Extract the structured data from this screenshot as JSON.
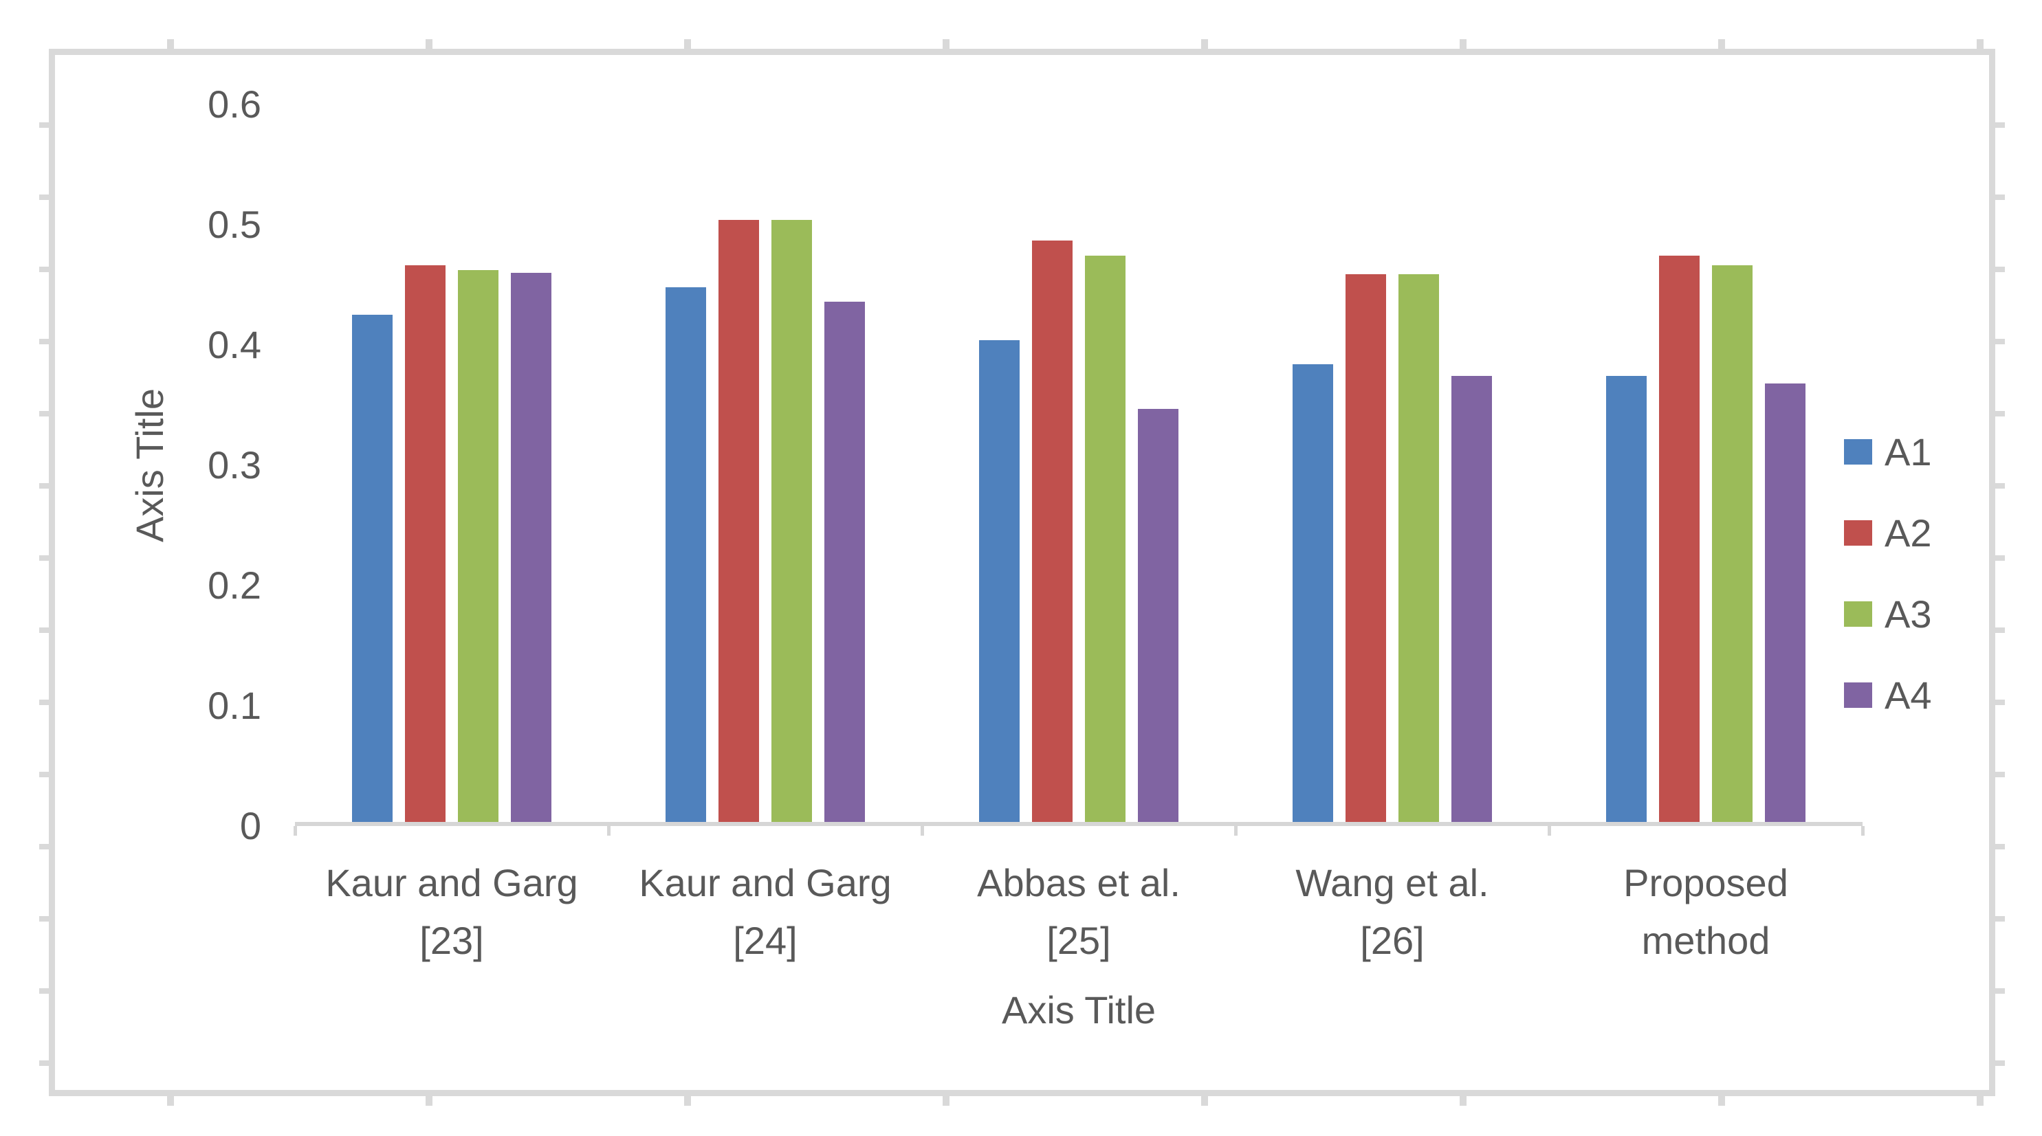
{
  "chart_data": {
    "type": "bar",
    "title": "",
    "xlabel": "Axis Title",
    "ylabel": "Axis Title",
    "categories": [
      "Kaur and Garg [23]",
      "Kaur and Garg [24]",
      "Abbas et al. [25]",
      "Wang et al. [26]",
      "Proposed method"
    ],
    "category_lines": [
      [
        "Kaur and Garg",
        "[23]"
      ],
      [
        "Kaur and Garg",
        "[24]"
      ],
      [
        "Abbas et al.",
        "[25]"
      ],
      [
        "Wang et al.",
        "[26]"
      ],
      [
        "Proposed",
        "method"
      ]
    ],
    "series": [
      {
        "name": "A1",
        "color": "#4F81BD",
        "values": [
          0.425,
          0.448,
          0.404,
          0.384,
          0.374
        ]
      },
      {
        "name": "A2",
        "color": "#C0504D",
        "values": [
          0.466,
          0.504,
          0.487,
          0.459,
          0.474
        ]
      },
      {
        "name": "A3",
        "color": "#9BBB59",
        "values": [
          0.462,
          0.504,
          0.474,
          0.459,
          0.466
        ]
      },
      {
        "name": "A4",
        "color": "#8064A2",
        "values": [
          0.46,
          0.436,
          0.347,
          0.374,
          0.368
        ]
      }
    ],
    "ylim": [
      0,
      0.6
    ],
    "ytick_labels": [
      "0.6",
      "0.5",
      "0.4",
      "0.3",
      "0.2",
      "0.1",
      "0"
    ],
    "ytick_values": [
      0.6,
      0.5,
      0.4,
      0.3,
      0.2,
      0.1,
      0
    ],
    "legend_position": "right",
    "legend_entries": [
      "A1",
      "A2",
      "A3",
      "A4"
    ],
    "grid": false
  },
  "axes": {
    "x_title": "Axis Title",
    "y_title": "Axis Title"
  },
  "colors": {
    "frame": "#D9D9D9",
    "axis_line": "#D6D6D6",
    "label_text": "#595959",
    "background": "#FFFFFF"
  }
}
